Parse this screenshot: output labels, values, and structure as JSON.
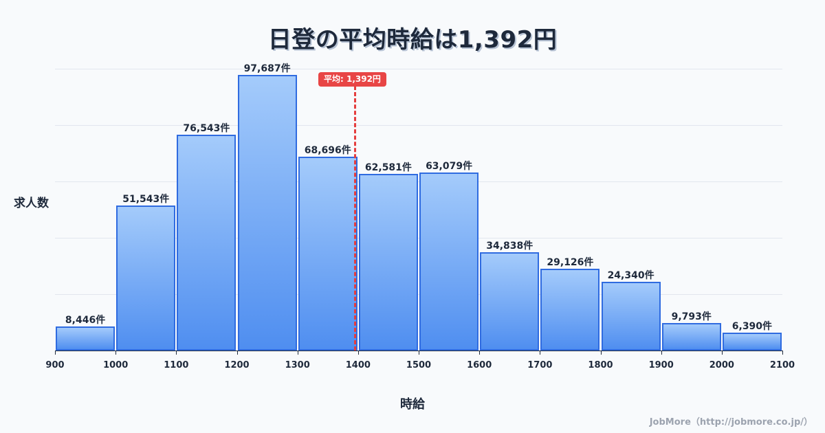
{
  "title": "日登の平均時給は1,392円",
  "mean_badge": "平均: 1,392円",
  "ylabel": "求人数",
  "xlabel": "時給",
  "credit": "JobMore（http://jobmore.co.jp/）",
  "colors": {
    "bar_top": "#a4cbfb",
    "bar_bottom": "#4f8ef0",
    "bar_border": "#2f6be0",
    "mean_line": "#e53e3e",
    "text": "#1e293b",
    "background": "#f8fafc"
  },
  "x_ticks": [
    "900",
    "1000",
    "1100",
    "1200",
    "1300",
    "1400",
    "1500",
    "1600",
    "1700",
    "1800",
    "1900",
    "2000",
    "2100"
  ],
  "bars": [
    {
      "label": "8,446件"
    },
    {
      "label": "51,543件"
    },
    {
      "label": "76,543件"
    },
    {
      "label": "97,687件"
    },
    {
      "label": "68,696件"
    },
    {
      "label": "62,581件"
    },
    {
      "label": "63,079件"
    },
    {
      "label": "34,838件"
    },
    {
      "label": "29,126件"
    },
    {
      "label": "24,340件"
    },
    {
      "label": "9,793件"
    },
    {
      "label": "6,390件"
    }
  ],
  "chart_data": {
    "type": "bar",
    "title": "日登の平均時給は1,392円",
    "xlabel": "時給",
    "ylabel": "求人数",
    "categories": [
      "900-1000",
      "1000-1100",
      "1100-1200",
      "1200-1300",
      "1300-1400",
      "1400-1500",
      "1500-1600",
      "1600-1700",
      "1700-1800",
      "1800-1900",
      "1900-2000",
      "2000-2100"
    ],
    "bin_edges": [
      900,
      1000,
      1100,
      1200,
      1300,
      1400,
      1500,
      1600,
      1700,
      1800,
      1900,
      2000,
      2100
    ],
    "values": [
      8446,
      51543,
      76543,
      97687,
      68696,
      62581,
      63079,
      34838,
      29126,
      24340,
      9793,
      6390
    ],
    "ylim": [
      0,
      100000
    ],
    "grid": true,
    "annotations": [
      {
        "type": "vline",
        "x": 1392,
        "label": "平均: 1,392円",
        "color": "#e53e3e",
        "style": "dashed"
      }
    ],
    "legend": null
  }
}
